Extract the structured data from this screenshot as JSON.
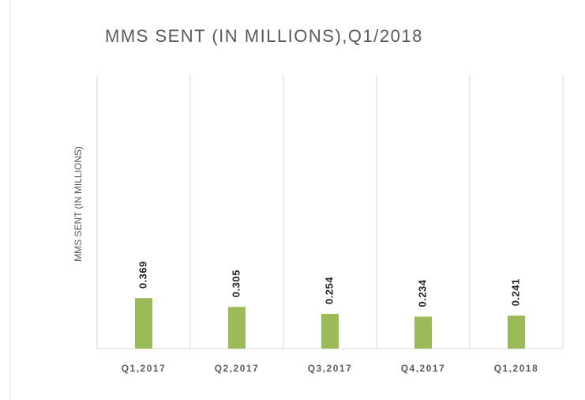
{
  "chart_data": {
    "type": "bar",
    "title": "MMS SENT (IN MILLIONS),Q1/2018",
    "y_label": "MMS SENT (IN MILLIONS)",
    "categories": [
      "Q1,2017",
      "Q2,2017",
      "Q3,2017",
      "Q4,2017",
      "Q1,2018"
    ],
    "values": [
      0.369,
      0.305,
      0.254,
      0.234,
      0.241
    ],
    "color": "#9bbb59",
    "ylim": [
      0,
      2
    ]
  }
}
